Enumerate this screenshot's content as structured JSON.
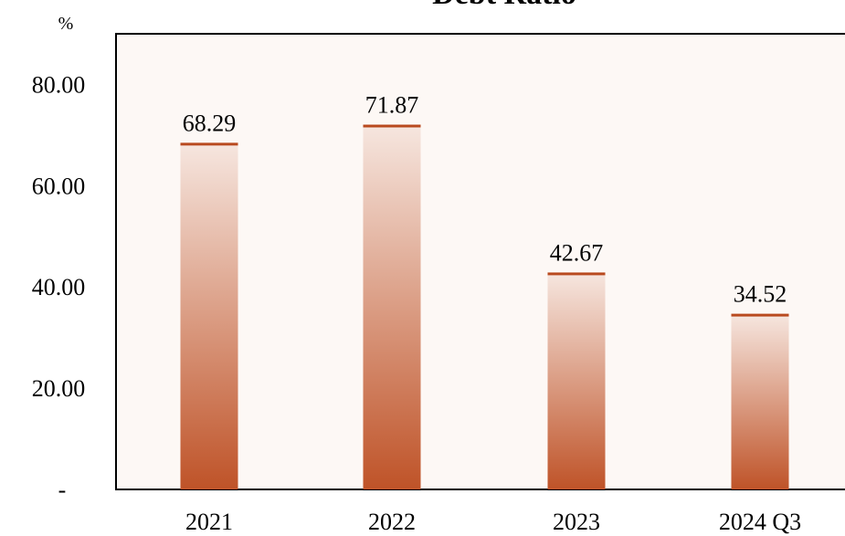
{
  "chart_data": {
    "type": "bar",
    "title": "Debt Ratio",
    "unit_label": "%",
    "categories": [
      "2021",
      "2022",
      "2023",
      "2024 Q3"
    ],
    "values": [
      68.29,
      71.87,
      42.67,
      34.52
    ],
    "data_labels": [
      "68.29",
      "71.87",
      "42.67",
      "34.52"
    ],
    "ylim": [
      0,
      90
    ],
    "yticks": [
      0,
      20,
      40,
      60,
      80
    ],
    "ytick_labels": [
      "-",
      "20.00",
      "40.00",
      "60.00",
      "80.00"
    ],
    "grid": false,
    "colors": {
      "bar_top": "#f6e6df",
      "bar_bottom": "#bf5328",
      "bar_cap": "#b94a1f",
      "plot_background": "#fdf8f5"
    }
  }
}
